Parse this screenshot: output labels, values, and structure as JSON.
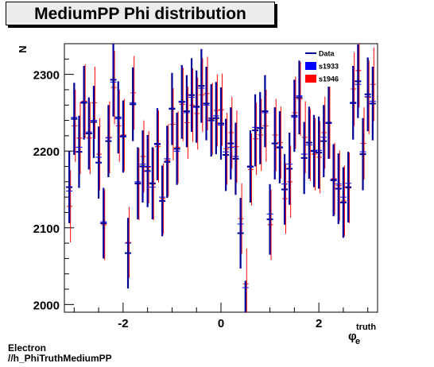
{
  "chart_data": {
    "type": "scatter",
    "title": "MediumPP Phi distribution",
    "xlabel_main": "φ",
    "xlabel_sub": "e",
    "xlabel_sup": "truth",
    "ylabel": "N",
    "xlim": [
      -3.2,
      3.2
    ],
    "ylim": [
      1990,
      2340
    ],
    "xticks": [
      -2,
      0,
      2
    ],
    "yticks": [
      2000,
      2100,
      2200,
      2300
    ],
    "legend_position": "top-right",
    "series": [
      {
        "name": "Data",
        "color": "#000099",
        "style": "errorbar",
        "x": [
          -3.1,
          -3.0,
          -2.9,
          -2.8,
          -2.7,
          -2.6,
          -2.5,
          -2.4,
          -2.3,
          -2.2,
          -2.1,
          -2.0,
          -1.9,
          -1.8,
          -1.7,
          -1.6,
          -1.5,
          -1.4,
          -1.3,
          -1.2,
          -1.1,
          -1.0,
          -0.9,
          -0.8,
          -0.7,
          -0.6,
          -0.5,
          -0.4,
          -0.3,
          -0.2,
          -0.1,
          0.0,
          0.1,
          0.2,
          0.3,
          0.4,
          0.5,
          0.6,
          0.7,
          0.8,
          0.9,
          1.0,
          1.1,
          1.2,
          1.3,
          1.4,
          1.5,
          1.6,
          1.7,
          1.8,
          1.9,
          2.0,
          2.1,
          2.2,
          2.3,
          2.4,
          2.5,
          2.6,
          2.7,
          2.8,
          2.9,
          3.0,
          3.1
        ],
        "y": [
          2153,
          2242,
          2199,
          2263,
          2223,
          2238,
          2185,
          2106,
          2213,
          2293,
          2244,
          2219,
          2067,
          2261,
          2158,
          2180,
          2174,
          2158,
          2209,
          2135,
          2186,
          2255,
          2203,
          2264,
          2252,
          2273,
          2258,
          2285,
          2262,
          2240,
          2243,
          2236,
          2195,
          2210,
          2190,
          2093,
          1985,
          2180,
          2227,
          2230,
          2252,
          2111,
          2210,
          2205,
          2150,
          2177,
          2246,
          2270,
          2191,
          2211,
          2200,
          2198,
          2213,
          2237,
          2162,
          2151,
          2133,
          2153,
          2263,
          2291,
          2196,
          2274,
          2262
        ],
        "err": [
          47,
          47,
          47,
          48,
          47,
          47,
          47,
          46,
          47,
          48,
          47,
          47,
          46,
          48,
          47,
          47,
          47,
          47,
          47,
          46,
          47,
          47,
          47,
          48,
          47,
          48,
          47,
          48,
          48,
          47,
          47,
          47,
          47,
          47,
          47,
          46,
          46,
          47,
          47,
          47,
          47,
          46,
          47,
          47,
          46,
          47,
          47,
          48,
          47,
          47,
          47,
          47,
          47,
          47,
          47,
          46,
          46,
          46,
          48,
          48,
          47,
          48,
          48
        ]
      },
      {
        "name": "s1933",
        "color": "#0000ff",
        "style": "marker",
        "y": [
          2148,
          2244,
          2205,
          2264,
          2225,
          2240,
          2192,
          2108,
          2217,
          2290,
          2242,
          2220,
          2080,
          2263,
          2160,
          2183,
          2180,
          2153,
          2210,
          2140,
          2190,
          2256,
          2200,
          2265,
          2250,
          2270,
          2257,
          2282,
          2260,
          2243,
          2246,
          2234,
          2199,
          2205,
          2193,
          2105,
          2022,
          2179,
          2231,
          2230,
          2250,
          2118,
          2210,
          2204,
          2157,
          2183,
          2244,
          2272,
          2196,
          2208,
          2201,
          2201,
          2218,
          2236,
          2163,
          2157,
          2140,
          2158,
          2262,
          2287,
          2199,
          2271,
          2265
        ]
      },
      {
        "name": "s1946",
        "color": "#ff0000",
        "style": "marker",
        "y": [
          2128,
          2233,
          2217,
          2265,
          2217,
          2263,
          2196,
          2104,
          2218,
          2283,
          2233,
          2221,
          2081,
          2276,
          2157,
          2193,
          2179,
          2157,
          2206,
          2138,
          2188,
          2235,
          2205,
          2261,
          2237,
          2260,
          2249,
          2273,
          2275,
          2242,
          2253,
          2254,
          2203,
          2224,
          2206,
          2112,
          2027,
          2176,
          2216,
          2221,
          2233,
          2104,
          2221,
          2211,
          2138,
          2160,
          2250,
          2268,
          2218,
          2208,
          2196,
          2192,
          2224,
          2237,
          2164,
          2155,
          2135,
          2152,
          2281,
          2305,
          2210,
          2270,
          2287
        ]
      }
    ]
  },
  "footer": {
    "line1": "Electron",
    "line2": "//h_PhiTruthMediumPP"
  }
}
